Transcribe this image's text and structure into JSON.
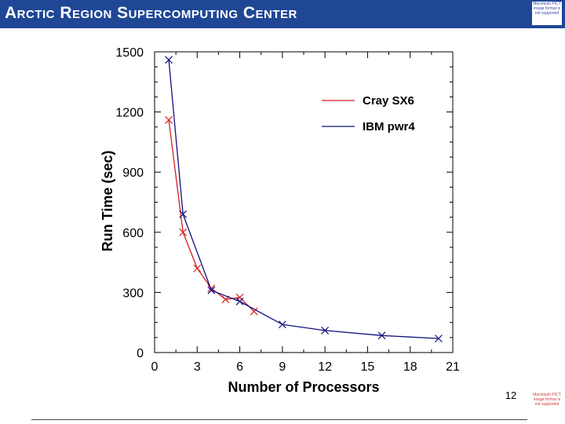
{
  "header": {
    "title": "Arctic Region Supercomputing Center",
    "top_image_text": "Macintosh PICT image format is not supported",
    "bottom_image_text": "Macintosh PICT image format is not supported"
  },
  "page_number": "12",
  "colors": {
    "banner": "#1f4796",
    "cray": "#d42020",
    "ibm": "#101080"
  },
  "chart_data": {
    "type": "line",
    "title": "",
    "xlabel": "Number of Processors",
    "ylabel": "Run Time (sec)",
    "xlim": [
      0,
      21
    ],
    "ylim": [
      0,
      1500
    ],
    "xticks": [
      0,
      3,
      6,
      9,
      12,
      15,
      18,
      21
    ],
    "yticks": [
      0,
      300,
      600,
      900,
      1200,
      1500
    ],
    "legend_position": "top-right",
    "series": [
      {
        "name": "Cray SX6",
        "color": "#d42020",
        "x": [
          1,
          2,
          3,
          4,
          5,
          6,
          7
        ],
        "y": [
          1160,
          600,
          420,
          320,
          265,
          275,
          205
        ]
      },
      {
        "name": "IBM pwr4",
        "color": "#101080",
        "x": [
          1,
          2,
          4,
          6,
          9,
          12,
          16,
          20
        ],
        "y": [
          1460,
          690,
          310,
          255,
          140,
          110,
          85,
          70
        ]
      }
    ]
  }
}
